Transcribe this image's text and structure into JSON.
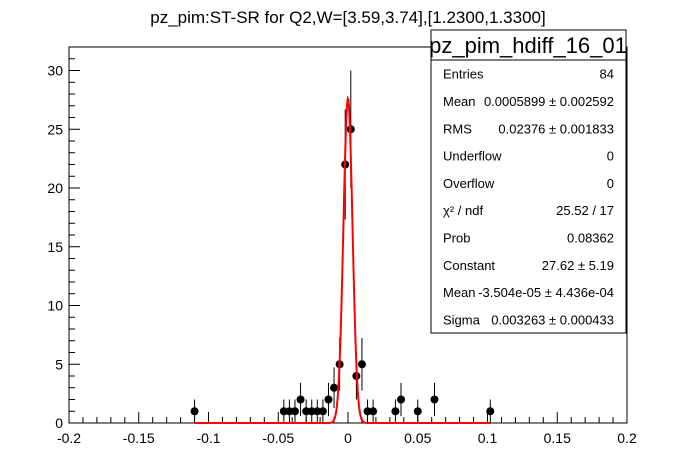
{
  "chart_data": {
    "type": "scatter",
    "title": "pz_pim:ST-SR for Q2,W=[3.59,3.74],[1.2300,1.3300]",
    "xlabel": "",
    "ylabel": "",
    "xlim": [
      -0.2,
      0.2
    ],
    "ylim": [
      0,
      32
    ],
    "x_ticks": [
      -0.2,
      -0.15,
      -0.1,
      -0.05,
      0,
      0.05,
      0.1,
      0.15,
      0.2
    ],
    "x_tick_labels": [
      "-0.2",
      "-0.15",
      "-0.1",
      "-0.05",
      "0",
      "0.05",
      "0.1",
      "0.15",
      "0.2"
    ],
    "y_ticks": [
      0,
      5,
      10,
      15,
      20,
      25,
      30
    ],
    "y_tick_labels": [
      "0",
      "5",
      "10",
      "15",
      "20",
      "25",
      "30"
    ],
    "points": [
      {
        "x": -0.11,
        "y": 1
      },
      {
        "x": -0.046,
        "y": 1
      },
      {
        "x": -0.042,
        "y": 1
      },
      {
        "x": -0.038,
        "y": 1
      },
      {
        "x": -0.034,
        "y": 2
      },
      {
        "x": -0.03,
        "y": 1
      },
      {
        "x": -0.026,
        "y": 1
      },
      {
        "x": -0.022,
        "y": 1
      },
      {
        "x": -0.018,
        "y": 1
      },
      {
        "x": -0.014,
        "y": 2
      },
      {
        "x": -0.01,
        "y": 3
      },
      {
        "x": -0.006,
        "y": 5
      },
      {
        "x": -0.002,
        "y": 22
      },
      {
        "x": 0.002,
        "y": 25
      },
      {
        "x": 0.006,
        "y": 4
      },
      {
        "x": 0.01,
        "y": 5
      },
      {
        "x": 0.014,
        "y": 1
      },
      {
        "x": 0.018,
        "y": 1
      },
      {
        "x": 0.034,
        "y": 1
      },
      {
        "x": 0.038,
        "y": 2
      },
      {
        "x": 0.05,
        "y": 1
      },
      {
        "x": 0.062,
        "y": 2
      },
      {
        "x": 0.102,
        "y": 1
      }
    ],
    "fit": {
      "type": "gaussian",
      "constant": 27.62,
      "mean": -3.504e-05,
      "sigma": 0.003263,
      "color": "#ff0000"
    },
    "legend_position": "top-right",
    "grid": false
  },
  "stats_box": {
    "name": "pz_pim_hdiff_16_01",
    "rows": [
      {
        "label": "Entries",
        "value": "84"
      },
      {
        "label": "Mean",
        "value": "0.0005899 ± 0.002592"
      },
      {
        "label": "RMS",
        "value": "0.02376 ± 0.001833"
      },
      {
        "label": "Underflow",
        "value": "0"
      },
      {
        "label": "Overflow",
        "value": "0"
      },
      {
        "label": "χ² / ndf",
        "value": "25.52 / 17"
      },
      {
        "label": "Prob",
        "value": "0.08362"
      },
      {
        "label": "Constant",
        "value": "27.62 ± 5.19"
      },
      {
        "label": "Mean",
        "value": "-3.504e-05 ± 4.436e-04"
      },
      {
        "label": "Sigma",
        "value": "0.003263 ± 0.000433"
      }
    ]
  }
}
